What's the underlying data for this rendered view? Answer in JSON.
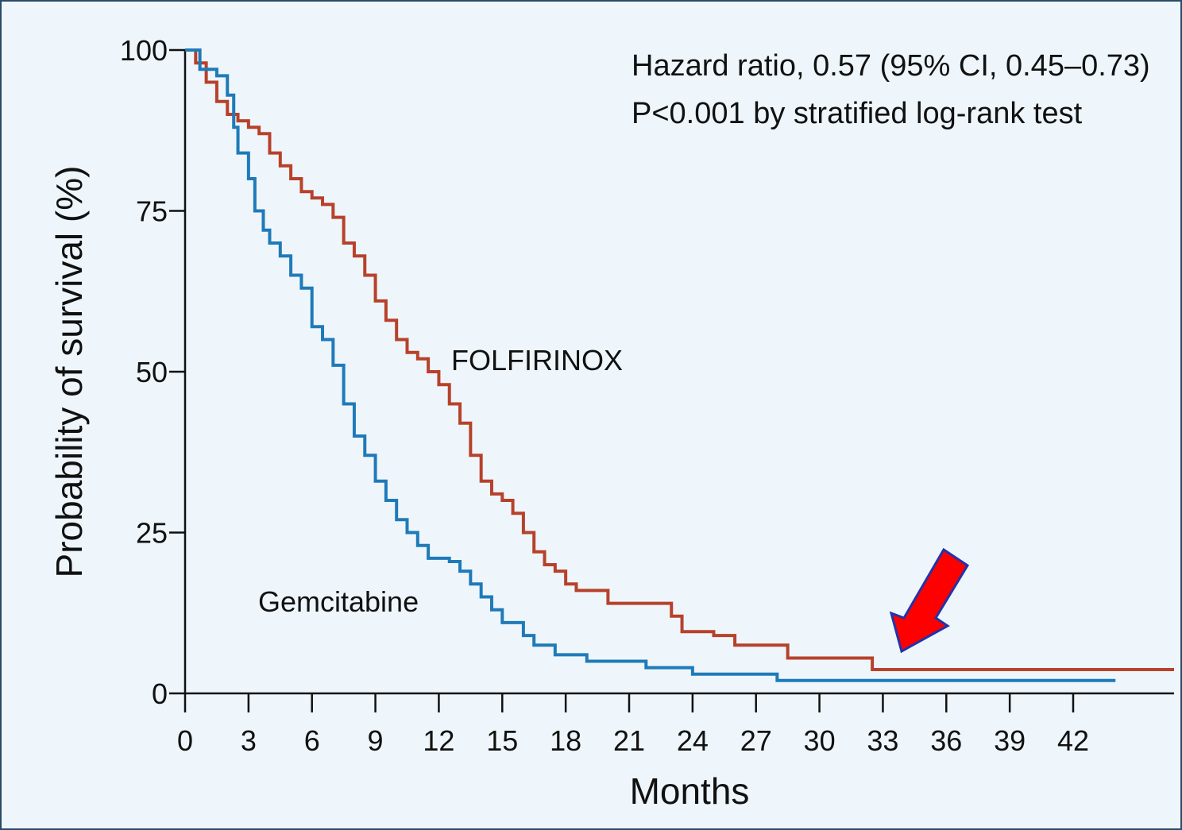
{
  "chart_data": {
    "type": "step",
    "xlabel": "Months",
    "ylabel": "Probability of survival  (%)",
    "annotations": [
      "Hazard ratio, 0.57 (95% CI, 0.45–0.73)",
      "P<0.001 by stratified log-rank test",
      "FOLFIRINOX",
      "Gemcitabine"
    ],
    "xlim": [
      0,
      47
    ],
    "ylim": [
      0,
      100
    ],
    "xticks": [
      0,
      3,
      6,
      9,
      12,
      15,
      18,
      21,
      24,
      27,
      30,
      33,
      36,
      39,
      42
    ],
    "yticks": [
      0,
      25,
      50,
      75,
      100
    ],
    "series": [
      {
        "name": "FOLFIRINOX",
        "color": "#b7412b",
        "x": [
          0,
          0.5,
          1,
          1.5,
          2,
          2.5,
          3,
          3.5,
          4,
          4.5,
          5,
          5.5,
          6,
          6.5,
          7,
          7.5,
          8,
          8.5,
          9,
          9.5,
          10,
          10.5,
          11,
          11.5,
          12,
          12.5,
          13,
          13.5,
          14,
          14.5,
          15,
          15.5,
          16,
          16.5,
          17,
          17.5,
          18,
          18.5,
          20,
          23,
          23.5,
          25,
          26,
          28.5,
          32.5,
          47
        ],
        "values": [
          100,
          98,
          95,
          92,
          90,
          89,
          88,
          87,
          84,
          82,
          80,
          78,
          77,
          76,
          74,
          70,
          68,
          65,
          61,
          58,
          55,
          53,
          52,
          50,
          48,
          45,
          42,
          37,
          33,
          31,
          30,
          28,
          25,
          22,
          20,
          19,
          17,
          16,
          14,
          12,
          9.6,
          9,
          7.5,
          5.5,
          3.7,
          3.7
        ]
      },
      {
        "name": "Gemcitabine",
        "color": "#1f7ab8",
        "x": [
          0,
          0.7,
          1.5,
          2,
          2.3,
          2.5,
          3,
          3.3,
          3.7,
          4,
          4.5,
          5,
          5.5,
          6,
          6.5,
          7,
          7.5,
          8,
          8.5,
          9,
          9.5,
          10,
          10.5,
          11,
          11.5,
          12.5,
          13,
          13.5,
          14,
          14.5,
          15,
          16,
          16.5,
          17.5,
          19,
          21.8,
          24,
          28,
          44
        ],
        "values": [
          100,
          97,
          96,
          93,
          88,
          84,
          80,
          75,
          72,
          70,
          68,
          65,
          63,
          57,
          55,
          51,
          45,
          40,
          37,
          33,
          30,
          27,
          25,
          23,
          21,
          20.5,
          19,
          17,
          15,
          13,
          11,
          9,
          7.5,
          6,
          5,
          4,
          3,
          2,
          2
        ]
      }
    ]
  }
}
